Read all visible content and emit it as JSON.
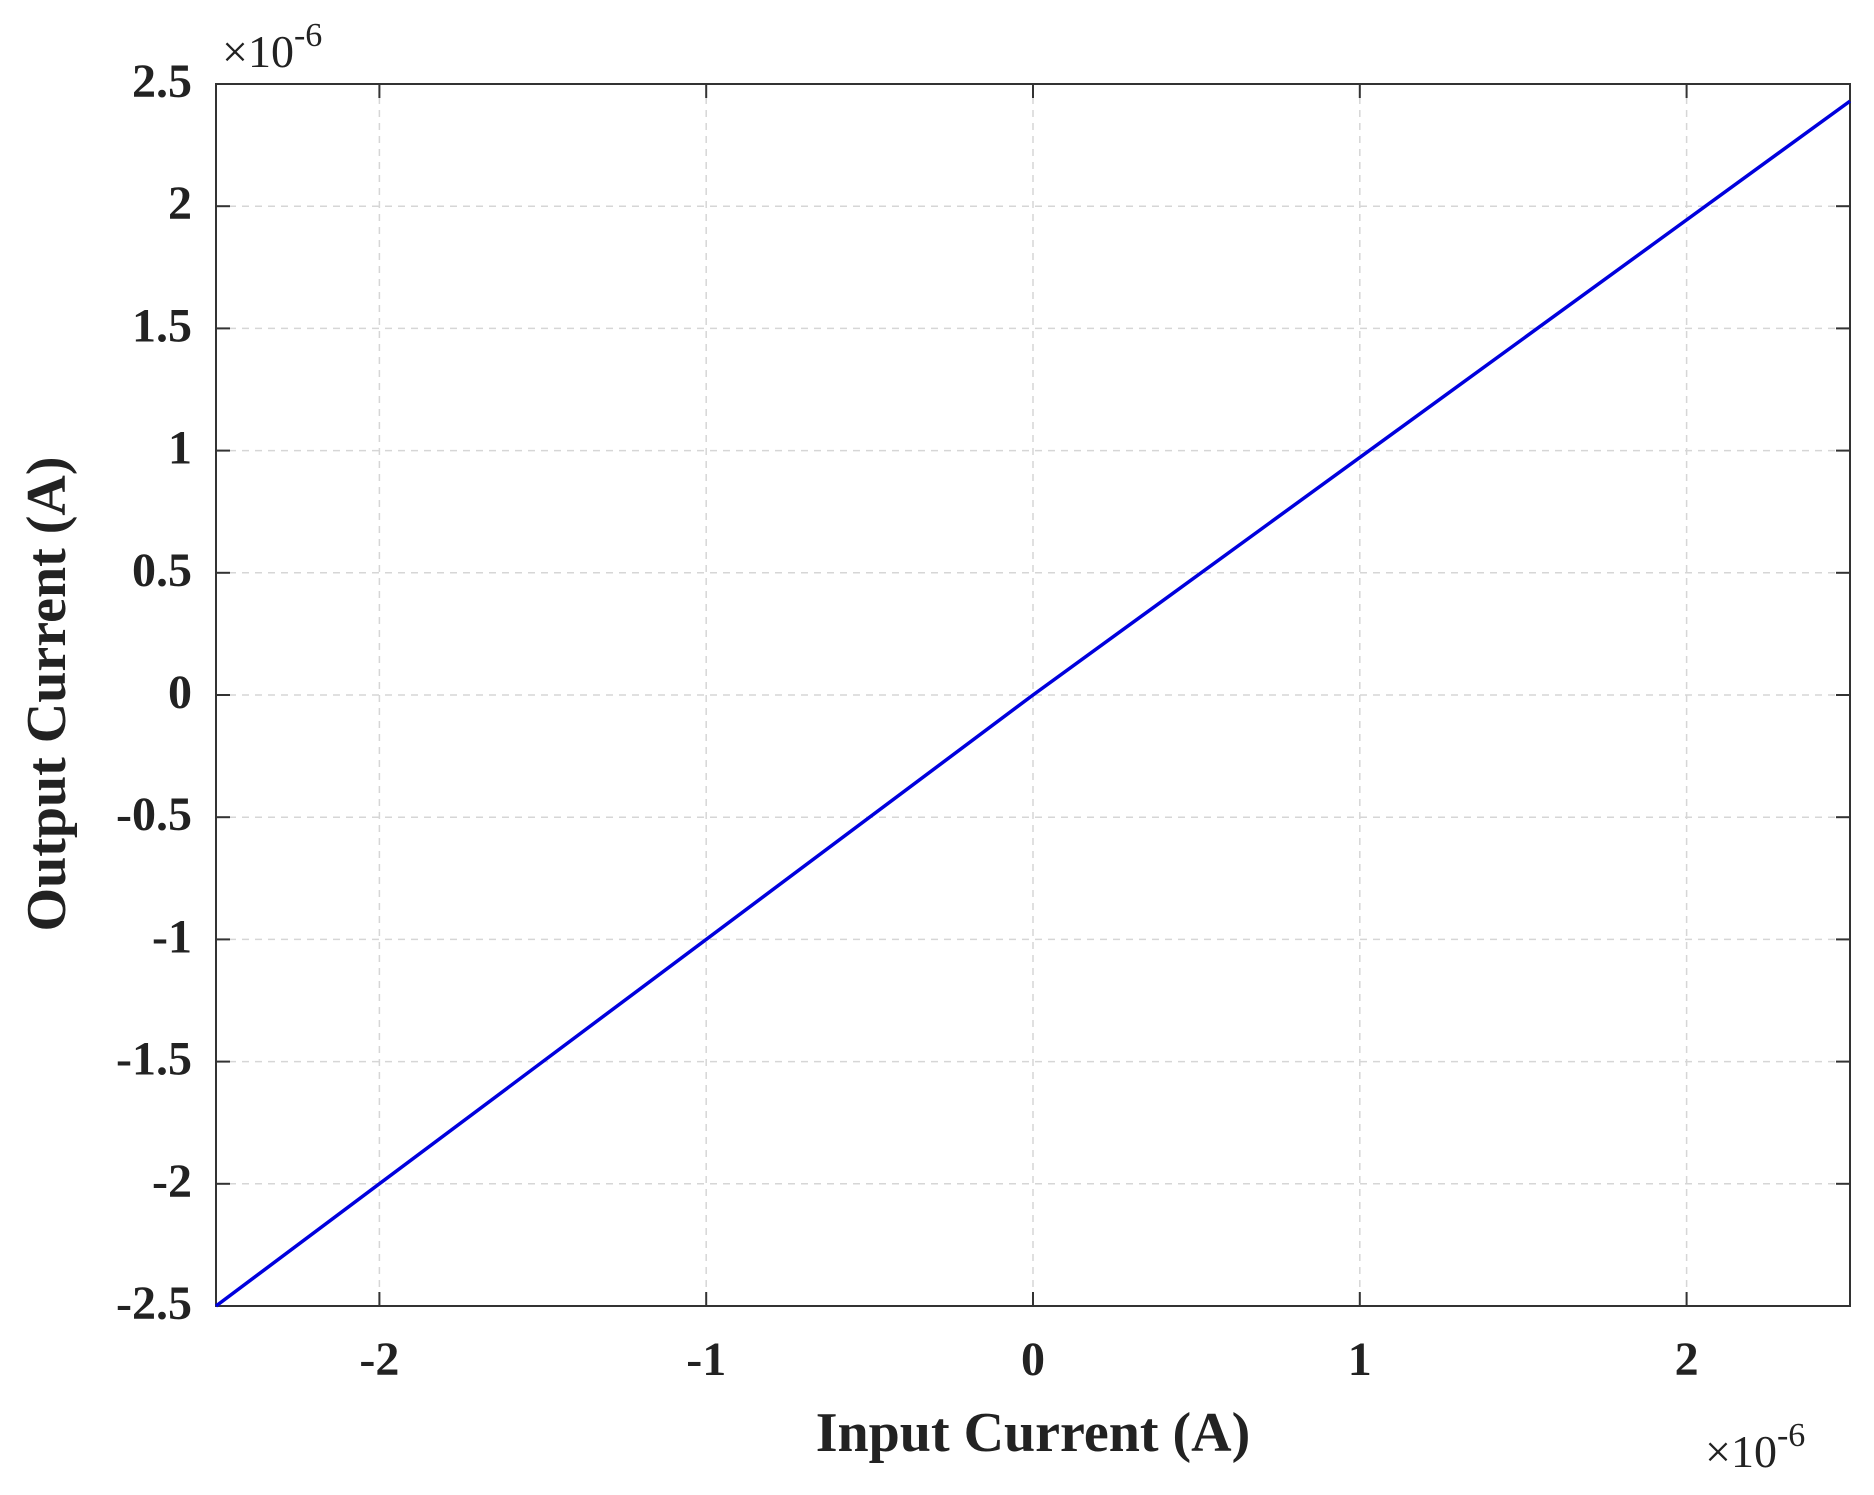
{
  "chart_data": {
    "type": "line",
    "x_label": "Input Current (A)",
    "y_label": "Output Current (A)",
    "x_multiplier": {
      "base": "×10",
      "exponent": "-6"
    },
    "y_multiplier": {
      "base": "×10",
      "exponent": "-6"
    },
    "x": [
      -2.5,
      0,
      2.5
    ],
    "values": [
      -2.5,
      0,
      2.43
    ],
    "color": "#0000dd",
    "xlim": [
      -2.5,
      2.5
    ],
    "ylim": [
      -2.5,
      2.5
    ],
    "xticks": [
      -2,
      -1,
      0,
      1,
      2
    ],
    "yticks": [
      -2.5,
      -2,
      -1.5,
      -1,
      -0.5,
      0,
      0.5,
      1,
      1.5,
      2,
      2.5
    ],
    "grid": true
  }
}
